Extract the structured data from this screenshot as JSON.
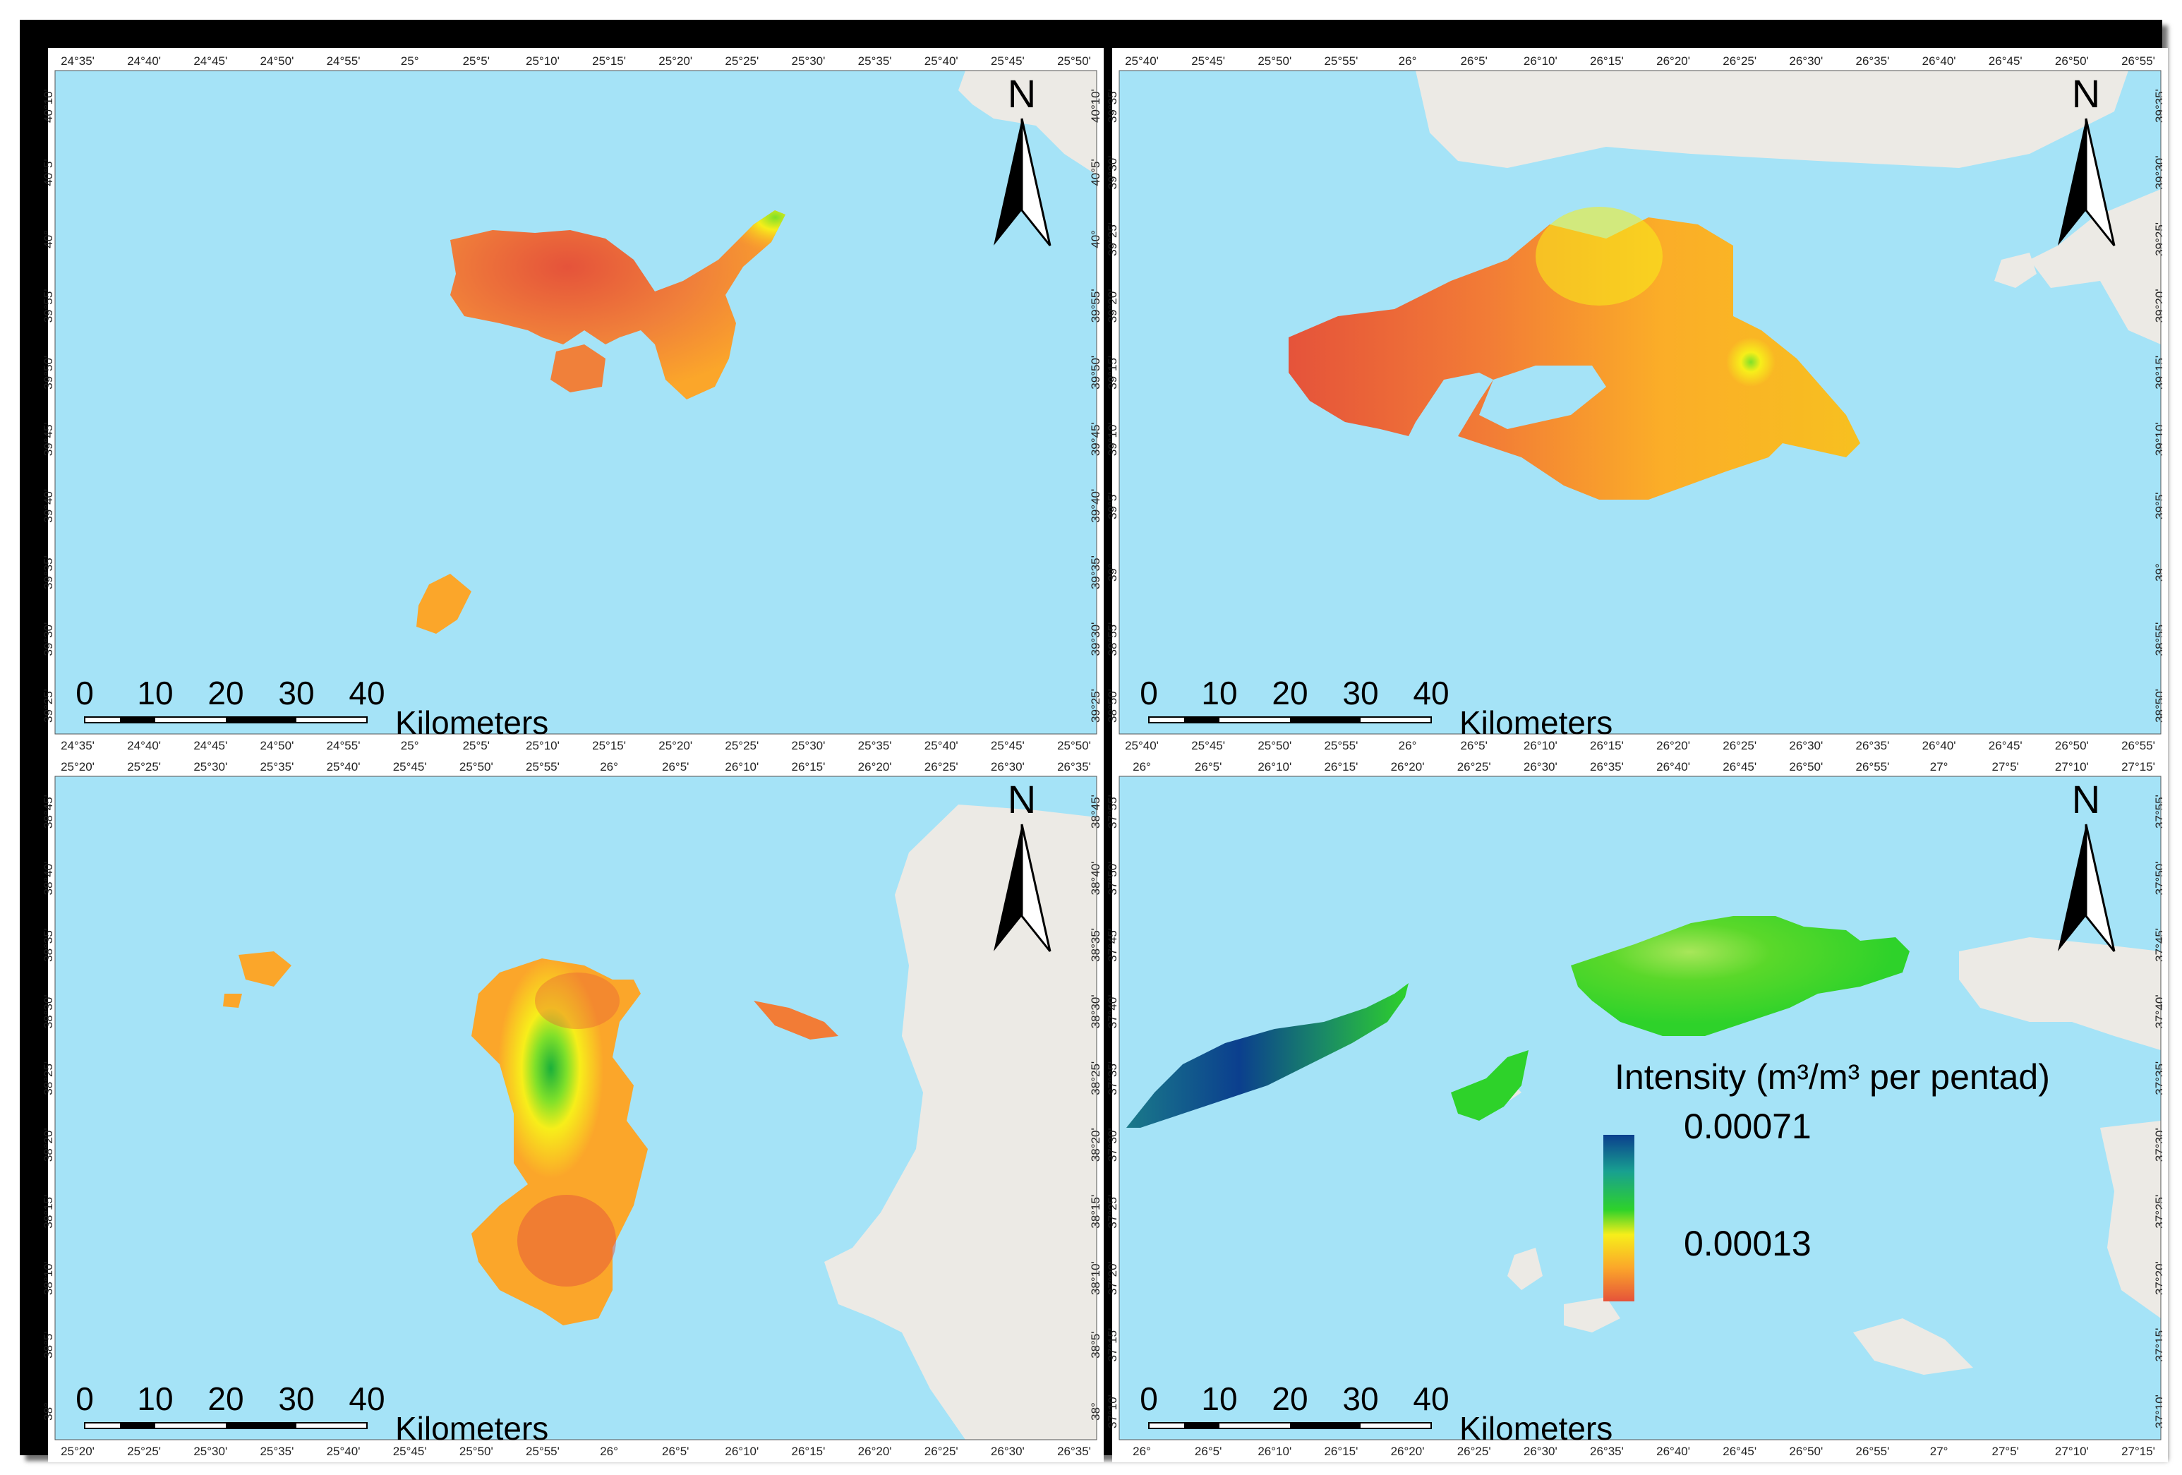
{
  "colors": {
    "sea": "#a5e3f7",
    "land_base": "#eceae5",
    "ramp_high": "#0b3f8e",
    "ramp_mid": "#2ed22a",
    "ramp_yellow": "#f7ee1a",
    "ramp_orange": "#fba62a",
    "ramp_low": "#e5533a"
  },
  "north_label": "N",
  "scale_bar": {
    "numbers": [
      "0",
      "10",
      "20",
      "30",
      "40"
    ],
    "unit": "Kilometers"
  },
  "legend": {
    "title": "Intensity (m³/m³ per pentad)",
    "max_label": "0.00071",
    "min_label": "0.00013"
  },
  "panels": [
    {
      "top_lon": [
        "24°35'",
        "24°40'",
        "24°45'",
        "24°50'",
        "24°55'",
        "25°",
        "25°5'",
        "25°10'",
        "25°15'",
        "25°20'",
        "25°25'",
        "25°30'",
        "25°35'",
        "25°40'",
        "25°45'",
        "25°50'"
      ],
      "bottom_lon": [
        "24°35'",
        "24°40'",
        "24°45'",
        "24°50'",
        "24°55'",
        "25°",
        "25°5'",
        "25°10'",
        "25°15'",
        "25°20'",
        "25°25'",
        "25°30'",
        "25°35'",
        "25°40'",
        "25°45'",
        "25°50'"
      ],
      "left_lat": [
        "40°10'",
        "40°5'",
        "40°",
        "39°55'",
        "39°50'",
        "39°45'",
        "39°40'",
        "39°35'",
        "39°30'",
        "39°25'"
      ],
      "right_lat": [
        "40°10'",
        "40°5'",
        "40°",
        "39°55'",
        "39°50'",
        "39°45'",
        "39°40'",
        "39°35'",
        "39°30'",
        "39°25'"
      ]
    },
    {
      "top_lon": [
        "25°40'",
        "25°45'",
        "25°50'",
        "25°55'",
        "26°",
        "26°5'",
        "26°10'",
        "26°15'",
        "26°20'",
        "26°25'",
        "26°30'",
        "26°35'",
        "26°40'",
        "26°45'",
        "26°50'",
        "26°55'"
      ],
      "bottom_lon": [
        "25°40'",
        "25°45'",
        "25°50'",
        "25°55'",
        "26°",
        "26°5'",
        "26°10'",
        "26°15'",
        "26°20'",
        "26°25'",
        "26°30'",
        "26°35'",
        "26°40'",
        "26°45'",
        "26°50'",
        "26°55'"
      ],
      "left_lat": [
        "39°35'",
        "39°30'",
        "39°25'",
        "39°20'",
        "39°15'",
        "39°10'",
        "39°5'",
        "39°",
        "38°55'",
        "38°50'"
      ],
      "right_lat": [
        "39°35'",
        "39°30'",
        "39°25'",
        "39°20'",
        "39°15'",
        "39°10'",
        "39°5'",
        "39°",
        "38°55'",
        "38°50'"
      ]
    },
    {
      "top_lon": [
        "25°20'",
        "25°25'",
        "25°30'",
        "25°35'",
        "25°40'",
        "25°45'",
        "25°50'",
        "25°55'",
        "26°",
        "26°5'",
        "26°10'",
        "26°15'",
        "26°20'",
        "26°25'",
        "26°30'",
        "26°35'"
      ],
      "bottom_lon": [
        "25°20'",
        "25°25'",
        "25°30'",
        "25°35'",
        "25°40'",
        "25°45'",
        "25°50'",
        "25°55'",
        "26°",
        "26°5'",
        "26°10'",
        "26°15'",
        "26°20'",
        "26°25'",
        "26°30'",
        "26°35'"
      ],
      "left_lat": [
        "38°45'",
        "38°40'",
        "38°35'",
        "38°30'",
        "38°25'",
        "38°20'",
        "38°15'",
        "38°10'",
        "38°5'",
        "38°"
      ],
      "right_lat": [
        "38°45'",
        "38°40'",
        "38°35'",
        "38°30'",
        "38°25'",
        "38°20'",
        "38°15'",
        "38°10'",
        "38°5'",
        "38°"
      ]
    },
    {
      "top_lon": [
        "26°",
        "26°5'",
        "26°10'",
        "26°15'",
        "26°20'",
        "26°25'",
        "26°30'",
        "26°35'",
        "26°40'",
        "26°45'",
        "26°50'",
        "26°55'",
        "27°",
        "27°5'",
        "27°10'",
        "27°15'"
      ],
      "bottom_lon": [
        "26°",
        "26°5'",
        "26°10'",
        "26°15'",
        "26°20'",
        "26°25'",
        "26°30'",
        "26°35'",
        "26°40'",
        "26°45'",
        "26°50'",
        "26°55'",
        "27°",
        "27°5'",
        "27°10'",
        "27°15'"
      ],
      "left_lat": [
        "37°55'",
        "37°50'",
        "37°45'",
        "37°40'",
        "37°35'",
        "37°30'",
        "37°25'",
        "37°20'",
        "37°15'",
        "37°10'"
      ],
      "right_lat": [
        "37°55'",
        "37°50'",
        "37°45'",
        "37°40'",
        "37°35'",
        "37°30'",
        "37°25'",
        "37°20'",
        "37°15'",
        "37°10'"
      ]
    }
  ]
}
